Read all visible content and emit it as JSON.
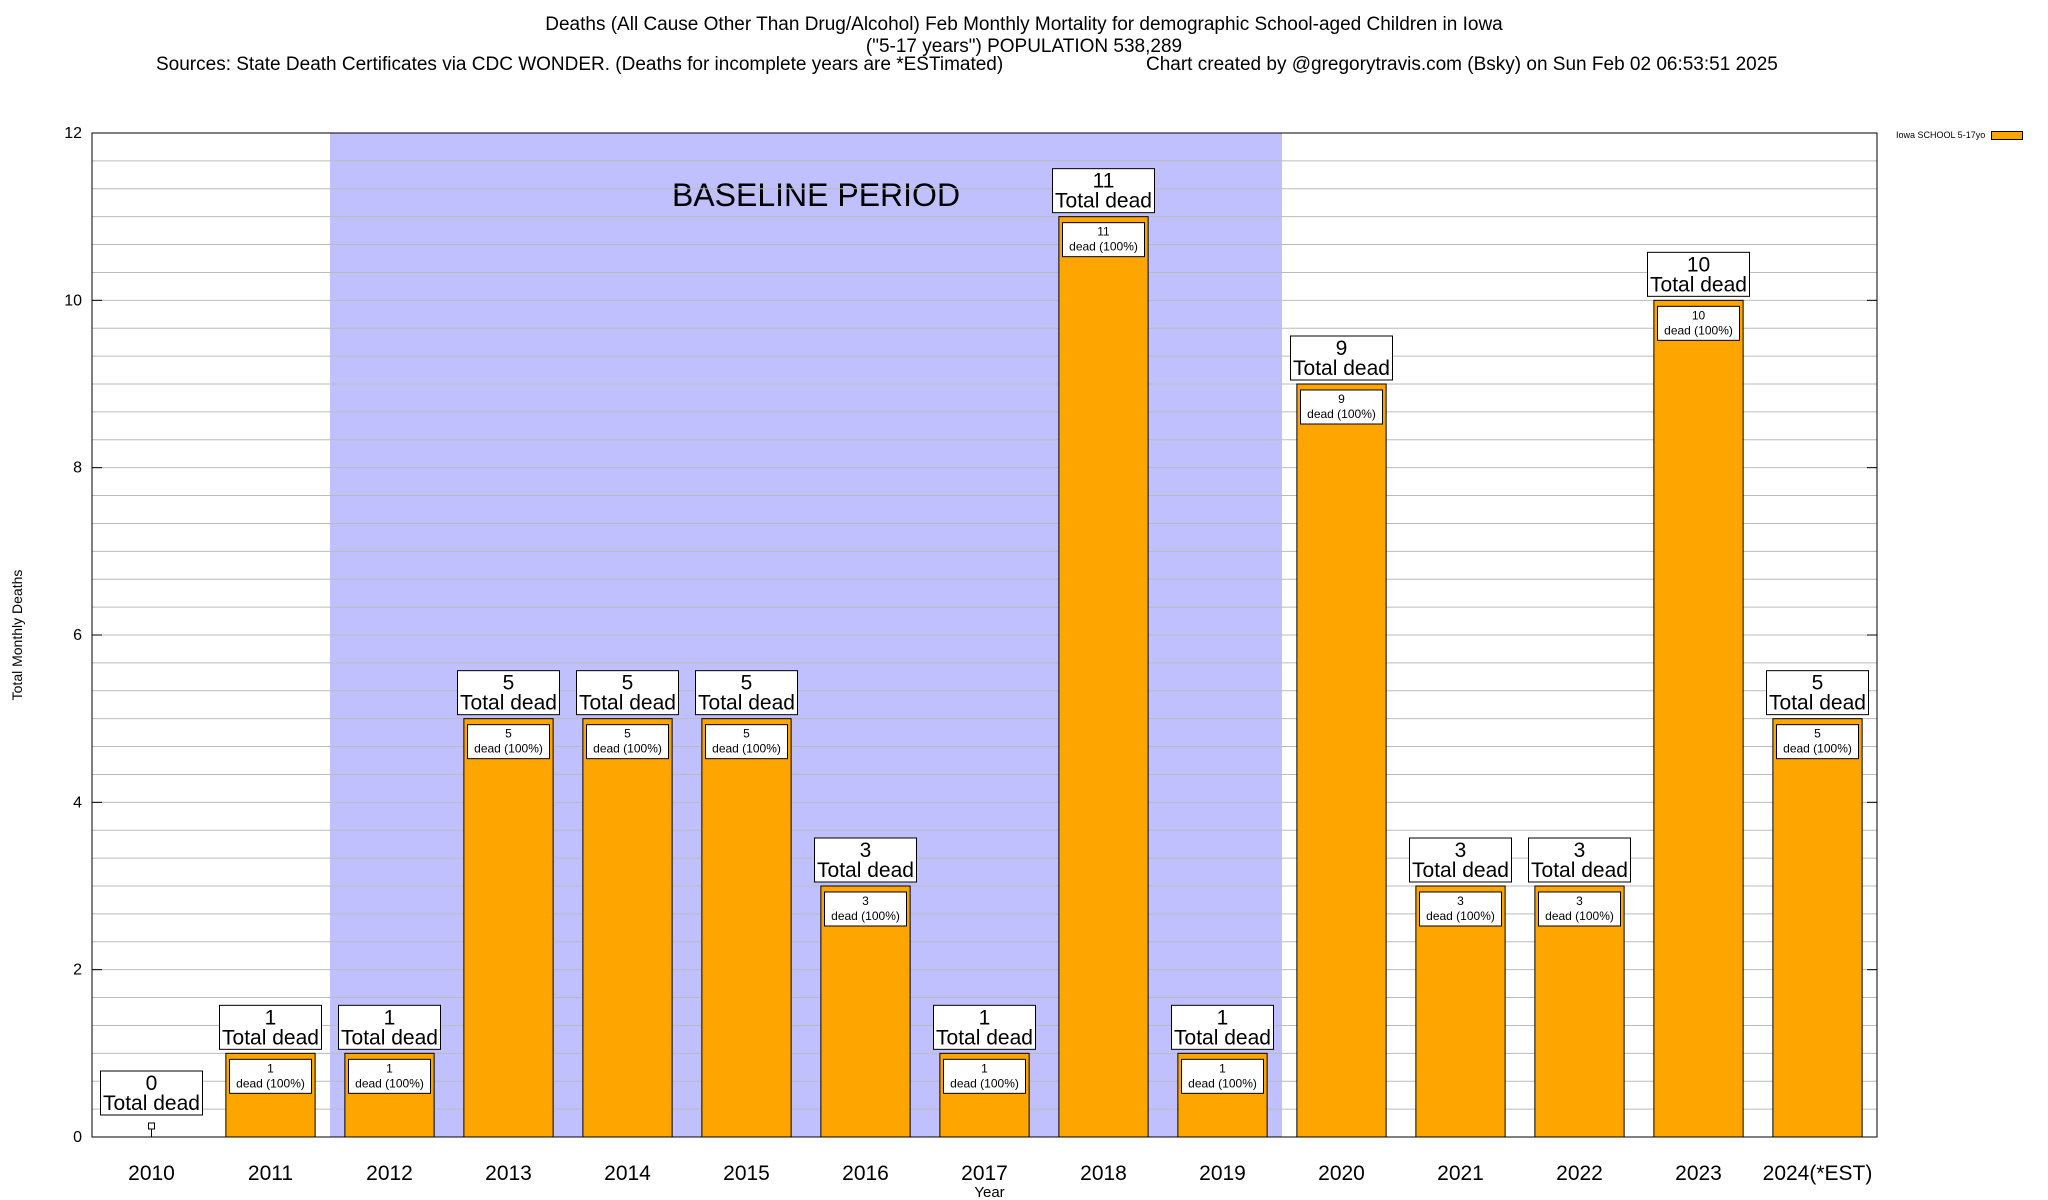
{
  "colors": {
    "bar": "#FFA500",
    "baseline_band": "#C0C0FF",
    "background": "#FFFFFF",
    "grid": "#BBBBBB"
  },
  "header": {
    "title_line1": "Deaths (All Cause Other Than Drug/Alcohol) Feb Monthly Mortality for demographic School-aged Children in Iowa",
    "title_line2": "(\"5-17 years\") POPULATION 538,289",
    "sources": "Sources: State Death Certificates via CDC WONDER. (Deaths for incomplete years are *ESTimated)",
    "credit": "Chart created by @gregorytravis.com (Bsky) on Sun Feb 02 06:53:51 2025"
  },
  "legend": {
    "label": "Iowa SCHOOL 5-17yo"
  },
  "chart_data": {
    "type": "bar",
    "categories": [
      "2010",
      "2011",
      "2012",
      "2013",
      "2014",
      "2015",
      "2016",
      "2017",
      "2018",
      "2019",
      "2020",
      "2021",
      "2022",
      "2023",
      "2024(*EST)"
    ],
    "series": [
      {
        "name": "Iowa SCHOOL 5-17yo",
        "values": [
          0,
          1,
          1,
          5,
          5,
          5,
          3,
          1,
          11,
          1,
          9,
          3,
          3,
          10,
          5
        ]
      }
    ],
    "xlabel": "Year",
    "ylabel": "Total Monthly Deaths",
    "ylim": [
      0,
      12
    ],
    "yticks": [
      0,
      2,
      4,
      6,
      8,
      10,
      12
    ],
    "grid": true,
    "legend_position": "top-right",
    "total_label": "Total dead",
    "inner_label_suffix": "dead (100%)",
    "baseline": {
      "label": "BASELINE PERIOD",
      "from": "2012",
      "to": "2019"
    }
  }
}
